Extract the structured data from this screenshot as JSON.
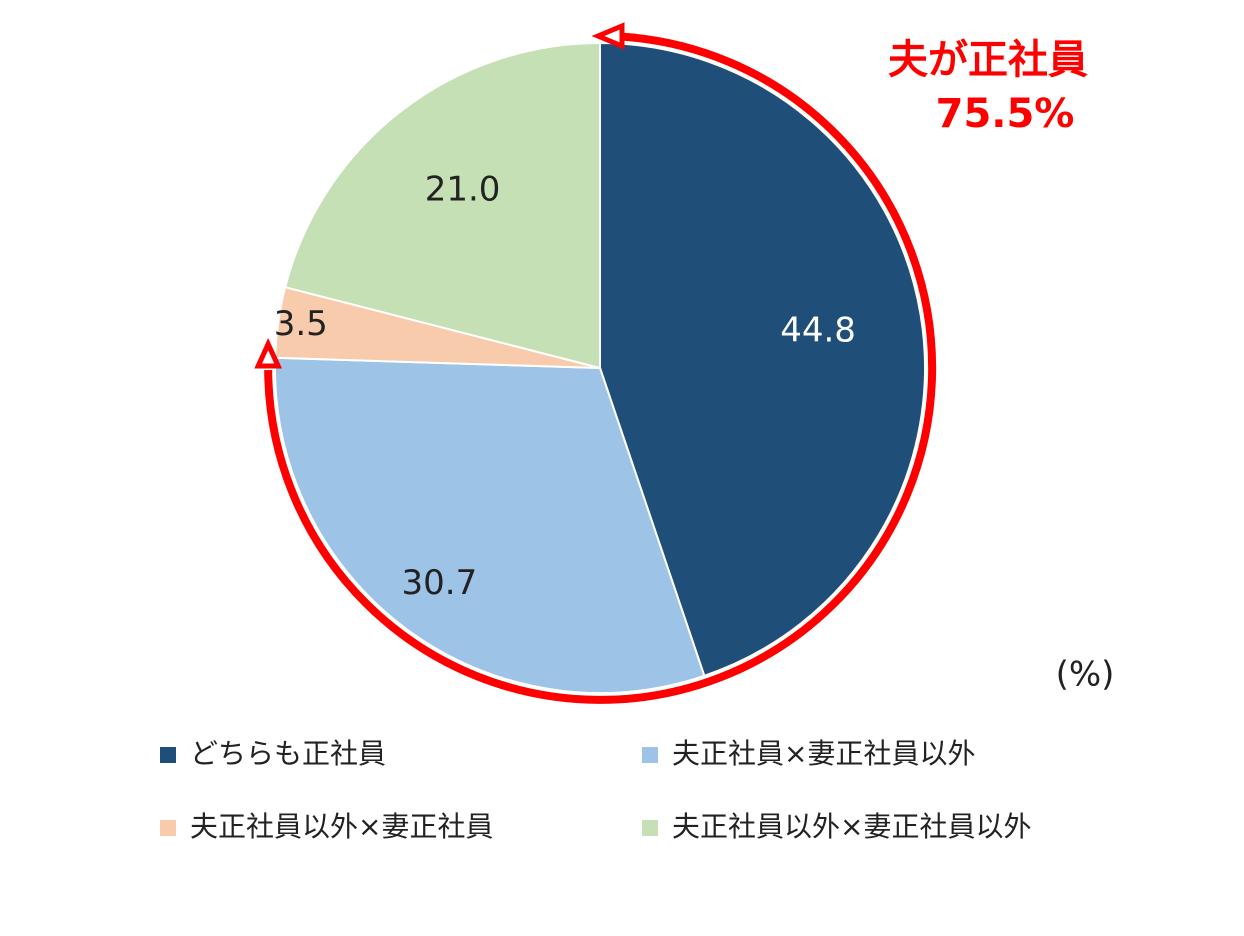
{
  "chart_data": {
    "type": "pie",
    "categories": [
      "どちらも正社員",
      "夫正社員×妻正社員以外",
      "夫正社員以外×妻正社員",
      "夫正社員以外×妻正社員以外"
    ],
    "values": [
      44.8,
      30.7,
      3.5,
      21.0
    ],
    "value_labels": [
      "44.8",
      "30.7",
      "3.5",
      "21.0"
    ],
    "colors": [
      "#1f4e79",
      "#9dc3e6",
      "#f8cbad",
      "#c5e0b4"
    ],
    "unit_label": "(%)",
    "annotations": [
      "夫が正社員",
      "75.5%"
    ],
    "annotation_color": "#ff0000"
  }
}
